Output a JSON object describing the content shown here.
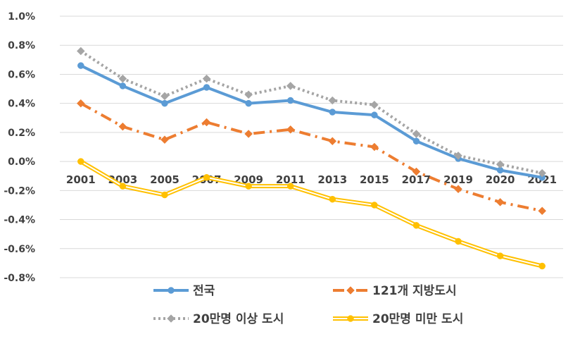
{
  "chart_data": {
    "type": "line",
    "title": "",
    "xlabel": "",
    "ylabel": "",
    "categories": [
      "2001",
      "2003",
      "2005",
      "2007",
      "2009",
      "2011",
      "2013",
      "2015",
      "2017",
      "2019",
      "2020",
      "2021"
    ],
    "y_ticks": [
      "1.0%",
      "0.8%",
      "0.6%",
      "0.4%",
      "0.2%",
      "0.0%",
      "-0.2%",
      "-0.4%",
      "-0.6%",
      "-0.8%"
    ],
    "ylim": [
      -0.8,
      1.0
    ],
    "y_unit": "%",
    "grid": true,
    "legend_position": "bottom",
    "series": [
      {
        "name": "전국",
        "color": "#5b9bd5",
        "style": "solid",
        "marker": "circle",
        "values": [
          0.66,
          0.52,
          0.4,
          0.51,
          0.4,
          0.42,
          0.34,
          0.32,
          0.14,
          0.02,
          -0.06,
          -0.11
        ]
      },
      {
        "name": "121개 지방도시",
        "color": "#ed7d31",
        "style": "dashdot",
        "marker": "diamond",
        "values": [
          0.4,
          0.24,
          0.15,
          0.27,
          0.19,
          0.22,
          0.14,
          0.1,
          -0.07,
          -0.19,
          -0.28,
          -0.34
        ]
      },
      {
        "name": "20만명 이상 도시",
        "color": "#a5a5a5",
        "style": "dotted",
        "marker": "diamond",
        "values": [
          0.76,
          0.57,
          0.45,
          0.57,
          0.46,
          0.52,
          0.42,
          0.39,
          0.19,
          0.04,
          -0.02,
          -0.08
        ]
      },
      {
        "name": "20만명 미만 도시",
        "color": "#ffc000",
        "style": "double",
        "marker": "circle",
        "values": [
          0.0,
          -0.17,
          -0.23,
          -0.11,
          -0.17,
          -0.17,
          -0.26,
          -0.3,
          -0.44,
          -0.55,
          -0.65,
          -0.72
        ]
      }
    ]
  }
}
